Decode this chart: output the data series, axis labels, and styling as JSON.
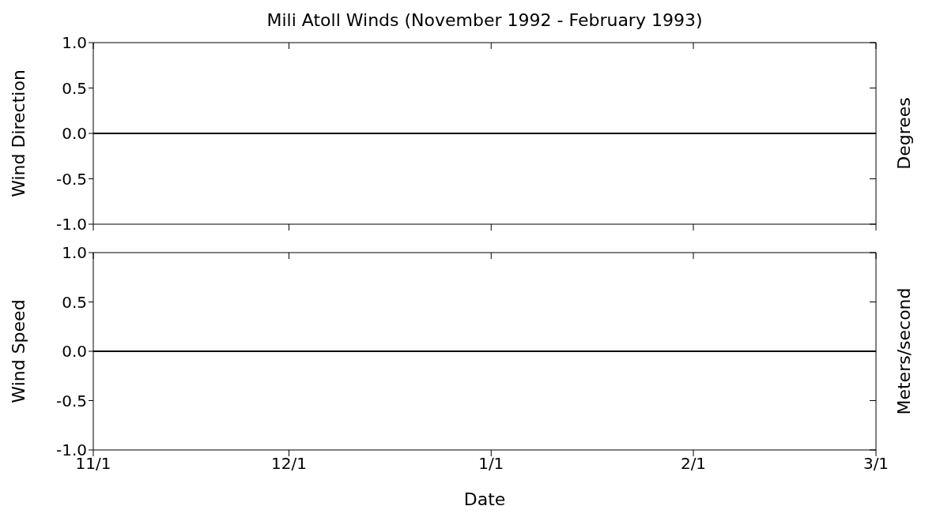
{
  "chart_data": [
    {
      "type": "line",
      "title": "Mili Atoll Winds (November 1992 - February 1993)",
      "ylabel": "Wind Direction",
      "y2label": "Degrees",
      "x": [
        "1992-11-01",
        "1993-03-01"
      ],
      "values": [
        0,
        0
      ],
      "color": "#000000",
      "xlim": [
        "1992-11-01",
        "1993-03-01"
      ],
      "xticks": [
        {
          "value": "1992-11-01",
          "label": null
        },
        {
          "value": "1992-12-01",
          "label": null
        },
        {
          "value": "1993-01-01",
          "label": null
        },
        {
          "value": "1993-02-01",
          "label": null
        },
        {
          "value": "1993-03-01",
          "label": null
        }
      ],
      "ylim": [
        -1,
        1
      ],
      "yticks": [
        {
          "value": -1,
          "label": "-1.0"
        },
        {
          "value": -0.5,
          "label": "-0.5"
        },
        {
          "value": 0,
          "label": "0.0"
        },
        {
          "value": 0.5,
          "label": "0.5"
        },
        {
          "value": 1,
          "label": "1.0"
        }
      ],
      "tick_labels": "y",
      "marker": "none",
      "line_style": "solid"
    },
    {
      "type": "line",
      "xlabel": "Date",
      "ylabel": "Wind Speed",
      "y2label": "Meters/second",
      "x": [
        "1992-11-01",
        "1993-03-01"
      ],
      "values": [
        0,
        0
      ],
      "color": "#000000",
      "xlim": [
        "1992-11-01",
        "1993-03-01"
      ],
      "xticks": [
        {
          "value": "1992-11-01",
          "label": "11/1"
        },
        {
          "value": "1992-12-01",
          "label": "12/1"
        },
        {
          "value": "1993-01-01",
          "label": "1/1"
        },
        {
          "value": "1993-02-01",
          "label": "2/1"
        },
        {
          "value": "1993-03-01",
          "label": "3/1"
        }
      ],
      "ylim": [
        -1,
        1
      ],
      "yticks": [
        {
          "value": -1,
          "label": "-1.0"
        },
        {
          "value": -0.5,
          "label": "-0.5"
        },
        {
          "value": 0,
          "label": "0.0"
        },
        {
          "value": 0.5,
          "label": "0.5"
        },
        {
          "value": 1,
          "label": "1.0"
        }
      ],
      "marker": "none",
      "line_style": "solid"
    }
  ]
}
